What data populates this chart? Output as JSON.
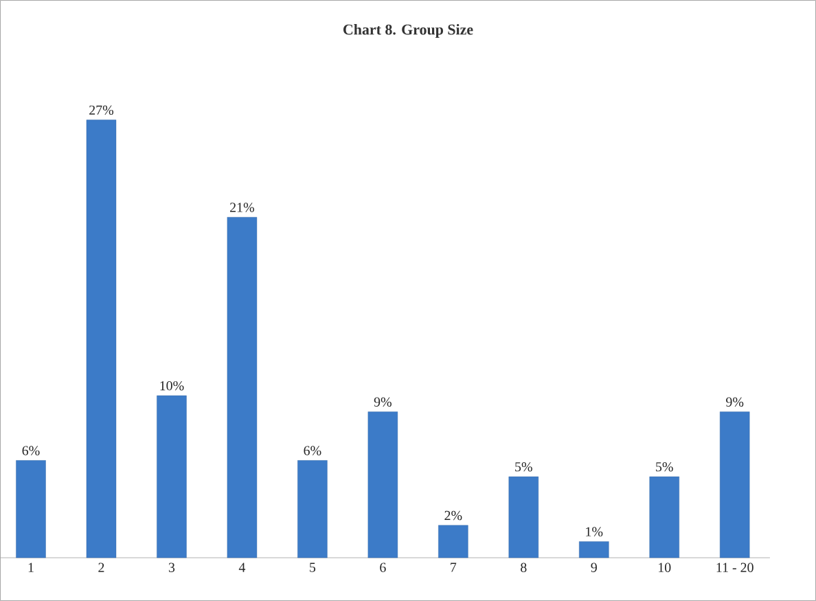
{
  "chart_data": {
    "type": "bar",
    "title": "Chart 8. Group Size",
    "categories": [
      "1",
      "2",
      "3",
      "4",
      "5",
      "6",
      "7",
      "8",
      "9",
      "10",
      "11 - 20"
    ],
    "values": [
      6,
      27,
      10,
      21,
      6,
      9,
      2,
      5,
      1,
      5,
      9
    ],
    "value_labels": [
      "6%",
      "27%",
      "10%",
      "21%",
      "6%",
      "9%",
      "2%",
      "5%",
      "1%",
      "5%",
      "9%"
    ],
    "color": "#3c7bc8"
  }
}
